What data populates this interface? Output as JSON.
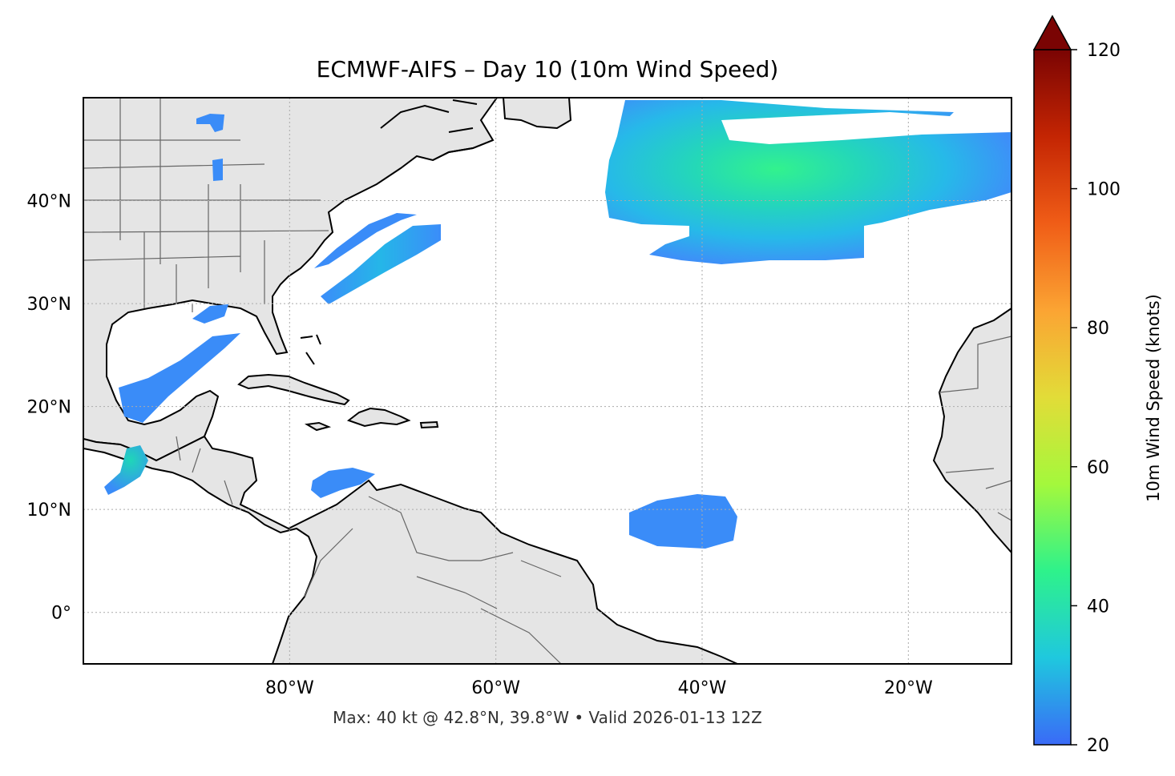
{
  "title": "ECMWF-AIFS – Day 10 (10m Wind Speed)",
  "footnote": "Max: 40 kt @ 42.8°N, 39.8°W • Valid 2026-01-13 12Z",
  "map": {
    "projection": "PlateCarree",
    "lon_range": [
      -100,
      -10
    ],
    "lat_range": [
      -5,
      50
    ],
    "gridlines": true,
    "land_color": "#e5e5e5",
    "ocean_color": "#ffffff",
    "x_ticks": [
      {
        "value": -80,
        "label": "80°W"
      },
      {
        "value": -60,
        "label": "60°W"
      },
      {
        "value": -40,
        "label": "40°W"
      },
      {
        "value": -20,
        "label": "20°W"
      }
    ],
    "y_ticks": [
      {
        "value": 40,
        "label": "40°N"
      },
      {
        "value": 30,
        "label": "30°N"
      },
      {
        "value": 20,
        "label": "20°N"
      },
      {
        "value": 10,
        "label": "10°N"
      },
      {
        "value": 0,
        "label": "0°"
      }
    ]
  },
  "colorbar": {
    "label": "10m Wind Speed (knots)",
    "min": 20,
    "max": 120,
    "extend": "max",
    "ticks": [
      {
        "value": 20,
        "label": "20"
      },
      {
        "value": 40,
        "label": "40"
      },
      {
        "value": 60,
        "label": "60"
      },
      {
        "value": 80,
        "label": "80"
      },
      {
        "value": 100,
        "label": "100"
      },
      {
        "value": 120,
        "label": "120"
      }
    ],
    "colormap": [
      "#3a6af7",
      "#1fc8de",
      "#2ef28b",
      "#a4f83c",
      "#e2dc38",
      "#fba433",
      "#f05d17",
      "#c42503",
      "#7a0403"
    ]
  },
  "wind_features": [
    {
      "name": "north-atlantic-jet",
      "center_lon": -40,
      "center_lat": 42.8,
      "peak_kt": 40
    },
    {
      "name": "tropical-patch",
      "center_lon": -40,
      "center_lat": 9,
      "peak_kt": 23
    },
    {
      "name": "gulf-stream-band",
      "center_lon": -67,
      "center_lat": 34,
      "peak_kt": 27
    },
    {
      "name": "gulf-of-mexico-band",
      "center_lon": -90,
      "center_lat": 22,
      "peak_kt": 24
    },
    {
      "name": "tehuantepec-jet",
      "center_lon": -95,
      "center_lat": 14,
      "peak_kt": 30
    },
    {
      "name": "caribbean-patch",
      "center_lon": -74,
      "center_lat": 13,
      "peak_kt": 22
    }
  ]
}
